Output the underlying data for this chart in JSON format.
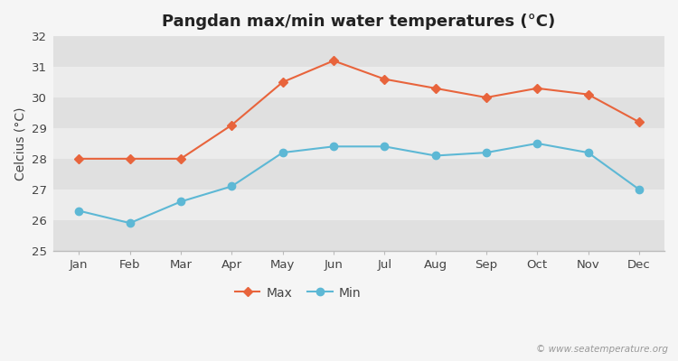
{
  "title": "Pangdan max/min water temperatures (°C)",
  "ylabel": "Celcius (°C)",
  "months": [
    "Jan",
    "Feb",
    "Mar",
    "Apr",
    "May",
    "Jun",
    "Jul",
    "Aug",
    "Sep",
    "Oct",
    "Nov",
    "Dec"
  ],
  "max_temps": [
    28.0,
    28.0,
    28.0,
    29.1,
    30.5,
    31.2,
    30.6,
    30.3,
    30.0,
    30.3,
    30.1,
    29.2
  ],
  "min_temps": [
    26.3,
    25.9,
    26.6,
    27.1,
    28.2,
    28.4,
    28.4,
    28.1,
    28.2,
    28.5,
    28.2,
    27.0
  ],
  "max_color": "#e8643c",
  "min_color": "#5db8d5",
  "fig_bg_color": "#f5f5f5",
  "band_light": "#ececec",
  "band_dark": "#e0e0e0",
  "ylim": [
    25,
    32
  ],
  "yticks": [
    25,
    26,
    27,
    28,
    29,
    30,
    31,
    32
  ],
  "legend_labels": [
    "Max",
    "Min"
  ],
  "watermark": "© www.seatemperature.org",
  "title_fontsize": 13,
  "label_fontsize": 10,
  "tick_fontsize": 9.5
}
